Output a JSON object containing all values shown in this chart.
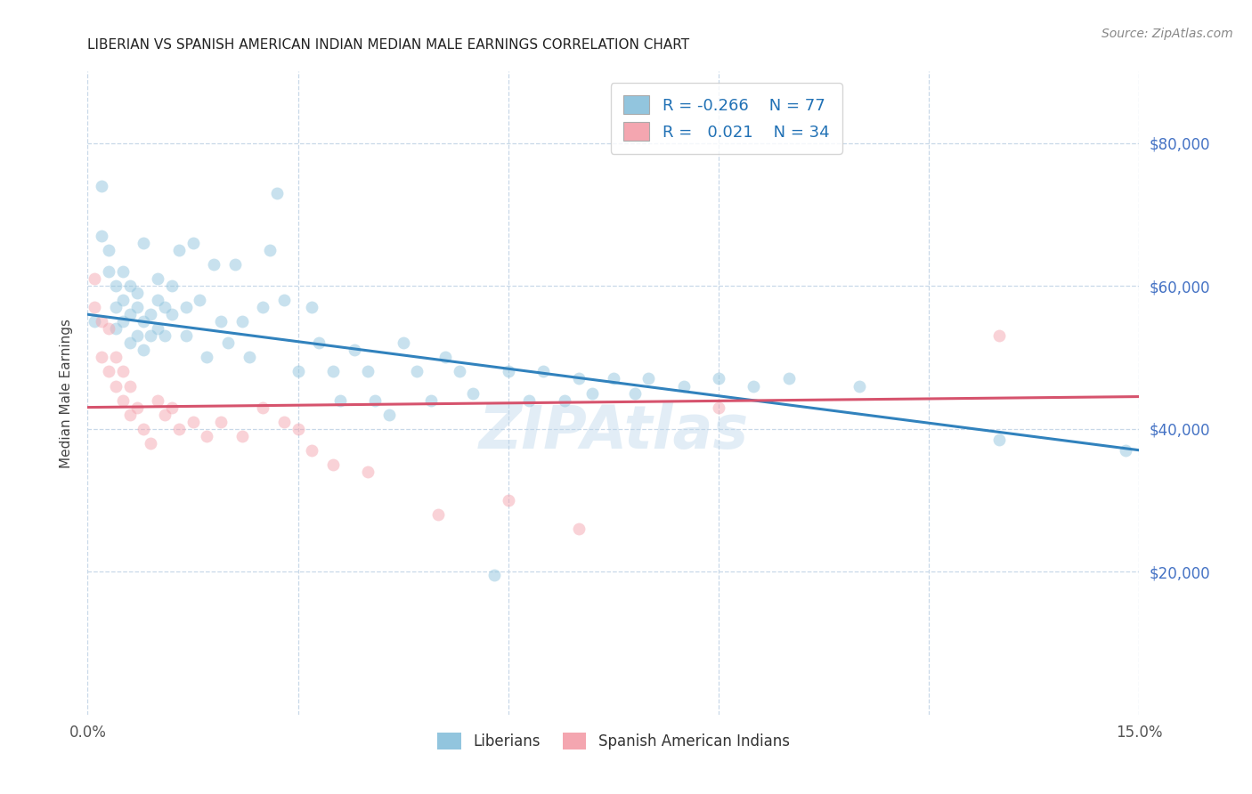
{
  "title": "LIBERIAN VS SPANISH AMERICAN INDIAN MEDIAN MALE EARNINGS CORRELATION CHART",
  "source": "Source: ZipAtlas.com",
  "ylabel": "Median Male Earnings",
  "yticks": [
    20000,
    40000,
    60000,
    80000
  ],
  "ytick_labels": [
    "$20,000",
    "$40,000",
    "$60,000",
    "$80,000"
  ],
  "xmin": 0.0,
  "xmax": 0.15,
  "ymin": 0,
  "ymax": 90000,
  "blue_color": "#92c5de",
  "pink_color": "#f4a6b0",
  "blue_line_color": "#3182bd",
  "pink_line_color": "#d6536d",
  "marker_size": 100,
  "marker_alpha": 0.5,
  "blue_trend_x": [
    0.0,
    0.15
  ],
  "blue_trend_y": [
    56000,
    37000
  ],
  "pink_trend_x": [
    0.0,
    0.15
  ],
  "pink_trend_y": [
    43000,
    44500
  ],
  "grid_color": "#c8d8e8",
  "grid_xticks": [
    0.0,
    0.03,
    0.06,
    0.09,
    0.12,
    0.15
  ],
  "liberian_x": [
    0.001,
    0.002,
    0.002,
    0.003,
    0.003,
    0.004,
    0.004,
    0.004,
    0.005,
    0.005,
    0.005,
    0.006,
    0.006,
    0.006,
    0.007,
    0.007,
    0.007,
    0.008,
    0.008,
    0.008,
    0.009,
    0.009,
    0.01,
    0.01,
    0.01,
    0.011,
    0.011,
    0.012,
    0.012,
    0.013,
    0.014,
    0.014,
    0.015,
    0.016,
    0.017,
    0.018,
    0.019,
    0.02,
    0.021,
    0.022,
    0.023,
    0.025,
    0.026,
    0.027,
    0.028,
    0.03,
    0.032,
    0.033,
    0.035,
    0.036,
    0.038,
    0.04,
    0.041,
    0.043,
    0.045,
    0.047,
    0.049,
    0.051,
    0.053,
    0.055,
    0.058,
    0.06,
    0.063,
    0.065,
    0.068,
    0.07,
    0.072,
    0.075,
    0.078,
    0.08,
    0.085,
    0.09,
    0.095,
    0.1,
    0.11,
    0.13,
    0.148
  ],
  "liberian_y": [
    55000,
    74000,
    67000,
    62000,
    65000,
    57000,
    54000,
    60000,
    62000,
    58000,
    55000,
    60000,
    56000,
    52000,
    57000,
    53000,
    59000,
    55000,
    51000,
    66000,
    56000,
    53000,
    58000,
    54000,
    61000,
    57000,
    53000,
    60000,
    56000,
    65000,
    57000,
    53000,
    66000,
    58000,
    50000,
    63000,
    55000,
    52000,
    63000,
    55000,
    50000,
    57000,
    65000,
    73000,
    58000,
    48000,
    57000,
    52000,
    48000,
    44000,
    51000,
    48000,
    44000,
    42000,
    52000,
    48000,
    44000,
    50000,
    48000,
    45000,
    19500,
    48000,
    44000,
    48000,
    44000,
    47000,
    45000,
    47000,
    45000,
    47000,
    46000,
    47000,
    46000,
    47000,
    46000,
    38500,
    37000
  ],
  "spanish_x": [
    0.001,
    0.001,
    0.002,
    0.002,
    0.003,
    0.003,
    0.004,
    0.004,
    0.005,
    0.005,
    0.006,
    0.006,
    0.007,
    0.008,
    0.009,
    0.01,
    0.011,
    0.012,
    0.013,
    0.015,
    0.017,
    0.019,
    0.022,
    0.025,
    0.028,
    0.03,
    0.032,
    0.035,
    0.04,
    0.05,
    0.06,
    0.07,
    0.09,
    0.13
  ],
  "spanish_y": [
    57000,
    61000,
    55000,
    50000,
    48000,
    54000,
    46000,
    50000,
    44000,
    48000,
    42000,
    46000,
    43000,
    40000,
    38000,
    44000,
    42000,
    43000,
    40000,
    41000,
    39000,
    41000,
    39000,
    43000,
    41000,
    40000,
    37000,
    35000,
    34000,
    28000,
    30000,
    26000,
    43000,
    53000
  ]
}
